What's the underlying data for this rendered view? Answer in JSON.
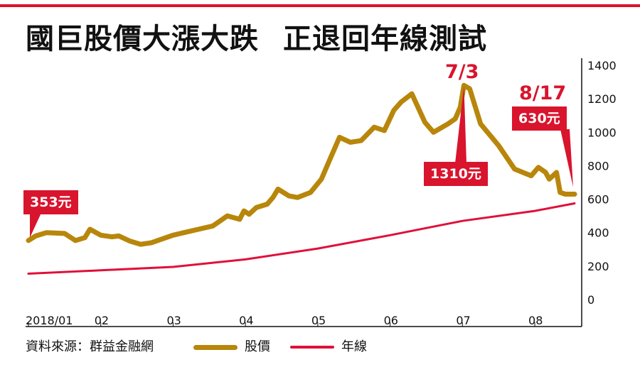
{
  "title": {
    "main": "國巨股價大漲大跌",
    "sub": "正退回年線測試"
  },
  "source": "資料來源：群益金融網",
  "legend": {
    "price": "股價",
    "annual": "年線"
  },
  "colors": {
    "top_rule": "#d9142d",
    "price_line": "#b8860b",
    "annual_line": "#e0103a",
    "callout_bg": "#d9142d",
    "axis": "#111111"
  },
  "annotations": {
    "start_label": "353元",
    "peak_date": "7/3",
    "peak_label": "1310元",
    "end_date": "8/17",
    "end_label": "630元"
  },
  "chart_data": {
    "type": "line",
    "title": "國巨股價大漲大跌 正退回年線測試",
    "xlabel": "",
    "ylabel": "",
    "ylim": [
      0,
      1400
    ],
    "yticks": [
      0,
      200,
      400,
      600,
      800,
      1000,
      1200,
      1400
    ],
    "x_tick_labels": [
      {
        "label": "2018/01",
        "month": 1.0
      },
      {
        "label": "02",
        "month": 2.0
      },
      {
        "label": "03",
        "month": 3.0
      },
      {
        "label": "04",
        "month": 4.0
      },
      {
        "label": "05",
        "month": 5.0
      },
      {
        "label": "06",
        "month": 6.0
      },
      {
        "label": "07",
        "month": 7.0
      },
      {
        "label": "08",
        "month": 8.0
      }
    ],
    "x_range_month": [
      1.0,
      8.55
    ],
    "series": [
      {
        "name": "股價",
        "x": [
          1.0,
          1.1,
          1.25,
          1.5,
          1.65,
          1.78,
          1.85,
          2.0,
          2.15,
          2.25,
          2.4,
          2.55,
          2.7,
          2.9,
          3.0,
          3.15,
          3.35,
          3.55,
          3.75,
          3.92,
          3.98,
          4.05,
          4.15,
          4.3,
          4.38,
          4.45,
          4.6,
          4.72,
          4.9,
          5.05,
          5.15,
          5.3,
          5.45,
          5.6,
          5.78,
          5.92,
          6.05,
          6.15,
          6.3,
          6.48,
          6.6,
          6.8,
          6.9,
          6.97,
          7.02,
          7.1,
          7.25,
          7.5,
          7.72,
          7.95,
          8.05,
          8.15,
          8.2,
          8.3,
          8.35,
          8.42,
          8.55
        ],
        "values": [
          353,
          380,
          400,
          395,
          353,
          370,
          420,
          385,
          375,
          380,
          350,
          330,
          340,
          370,
          385,
          400,
          420,
          440,
          500,
          480,
          530,
          510,
          550,
          570,
          610,
          660,
          620,
          610,
          640,
          720,
          820,
          970,
          940,
          950,
          1030,
          1010,
          1130,
          1180,
          1230,
          1060,
          1000,
          1050,
          1080,
          1150,
          1280,
          1260,
          1050,
          920,
          780,
          740,
          790,
          760,
          720,
          760,
          640,
          630,
          630
        ],
        "color": "#b8860b"
      },
      {
        "name": "年線",
        "x": [
          1.0,
          2.0,
          3.0,
          4.0,
          5.0,
          6.0,
          7.0,
          8.0,
          8.55
        ],
        "values": [
          155,
          175,
          195,
          240,
          305,
          385,
          470,
          530,
          575
        ],
        "color": "#e0103a"
      }
    ],
    "annotations": [
      {
        "text": "353元",
        "x": 1.0,
        "y": 353
      },
      {
        "text": "7/3",
        "x": 7.02
      },
      {
        "text": "1310元",
        "x": 7.02,
        "y": 1310
      },
      {
        "text": "8/17",
        "x": 8.55
      },
      {
        "text": "630元",
        "x": 8.55,
        "y": 630
      }
    ]
  }
}
